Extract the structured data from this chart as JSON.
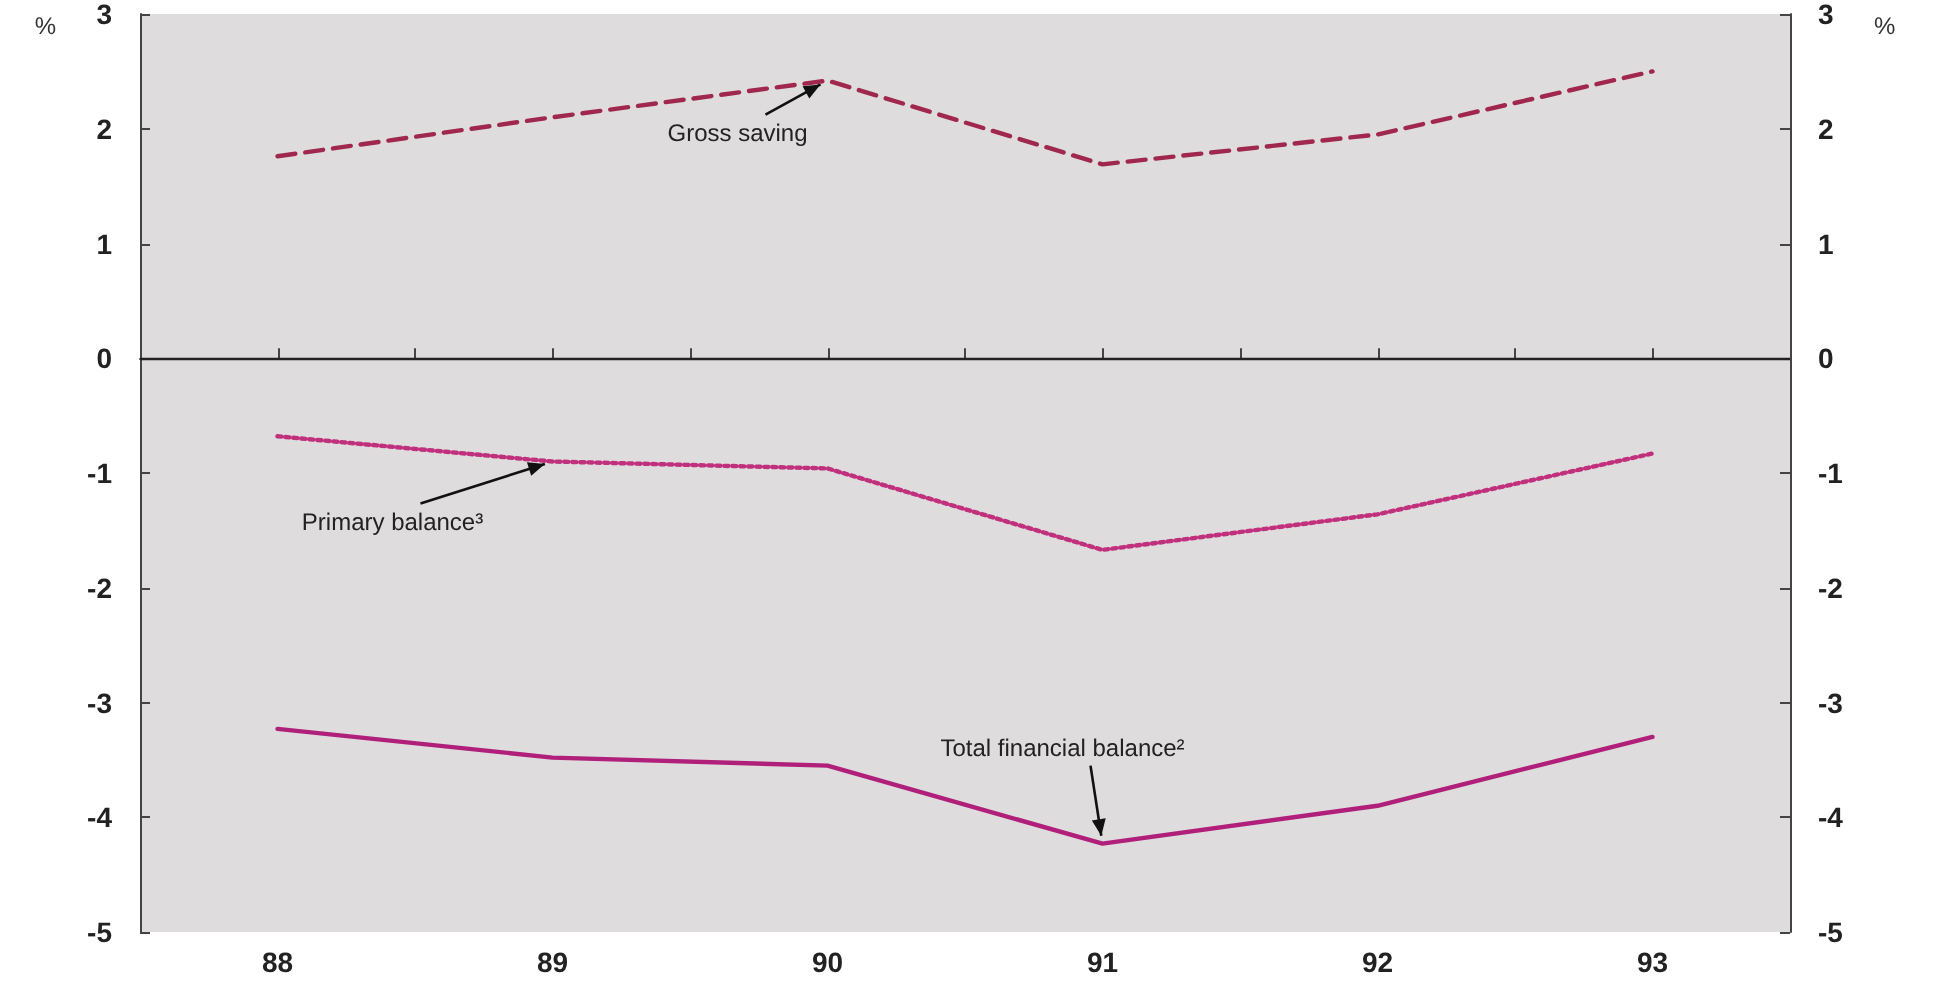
{
  "chart_data": {
    "type": "line",
    "x": [
      88,
      89,
      90,
      91,
      92,
      93
    ],
    "series": [
      {
        "name": "Gross saving",
        "color": "#a0284e",
        "line_style": "dashed",
        "values": [
          1.76,
          2.1,
          2.42,
          1.69,
          1.95,
          2.5
        ]
      },
      {
        "name": "Primary balance³",
        "color": "#c0307c",
        "line_style": "dotted",
        "values": [
          -0.68,
          -0.9,
          -0.96,
          -1.67,
          -1.36,
          -0.83
        ]
      },
      {
        "name": "Total financial balance²",
        "color": "#b0207a",
        "line_style": "solid",
        "values": [
          -3.23,
          -3.48,
          -3.55,
          -4.23,
          -3.9,
          -3.3
        ]
      }
    ],
    "xlim": [
      87.5,
      93.5
    ],
    "xticks": [
      88,
      {
        "value": 88.5,
        "label": null
      },
      89,
      {
        "value": 89.5,
        "label": null
      },
      90,
      {
        "value": 90.5,
        "label": null
      },
      91,
      {
        "value": 91.5,
        "label": null
      },
      92,
      {
        "value": 92.5,
        "label": null
      },
      93
    ],
    "ylim": [
      -5,
      3
    ],
    "yticks": [
      -5,
      -4,
      -3,
      -2,
      -1,
      0,
      1,
      2,
      3
    ],
    "y2lim": [
      -5,
      3
    ],
    "y2ticks": [
      -5,
      -4,
      -3,
      -2,
      -1,
      0,
      1,
      2,
      3
    ],
    "ylabel": "%",
    "y2label": "%",
    "ref_lines": [
      {
        "axis": "y",
        "value": 0,
        "color": "#222222"
      }
    ],
    "marker": "none",
    "grid": false,
    "legend": false
  }
}
